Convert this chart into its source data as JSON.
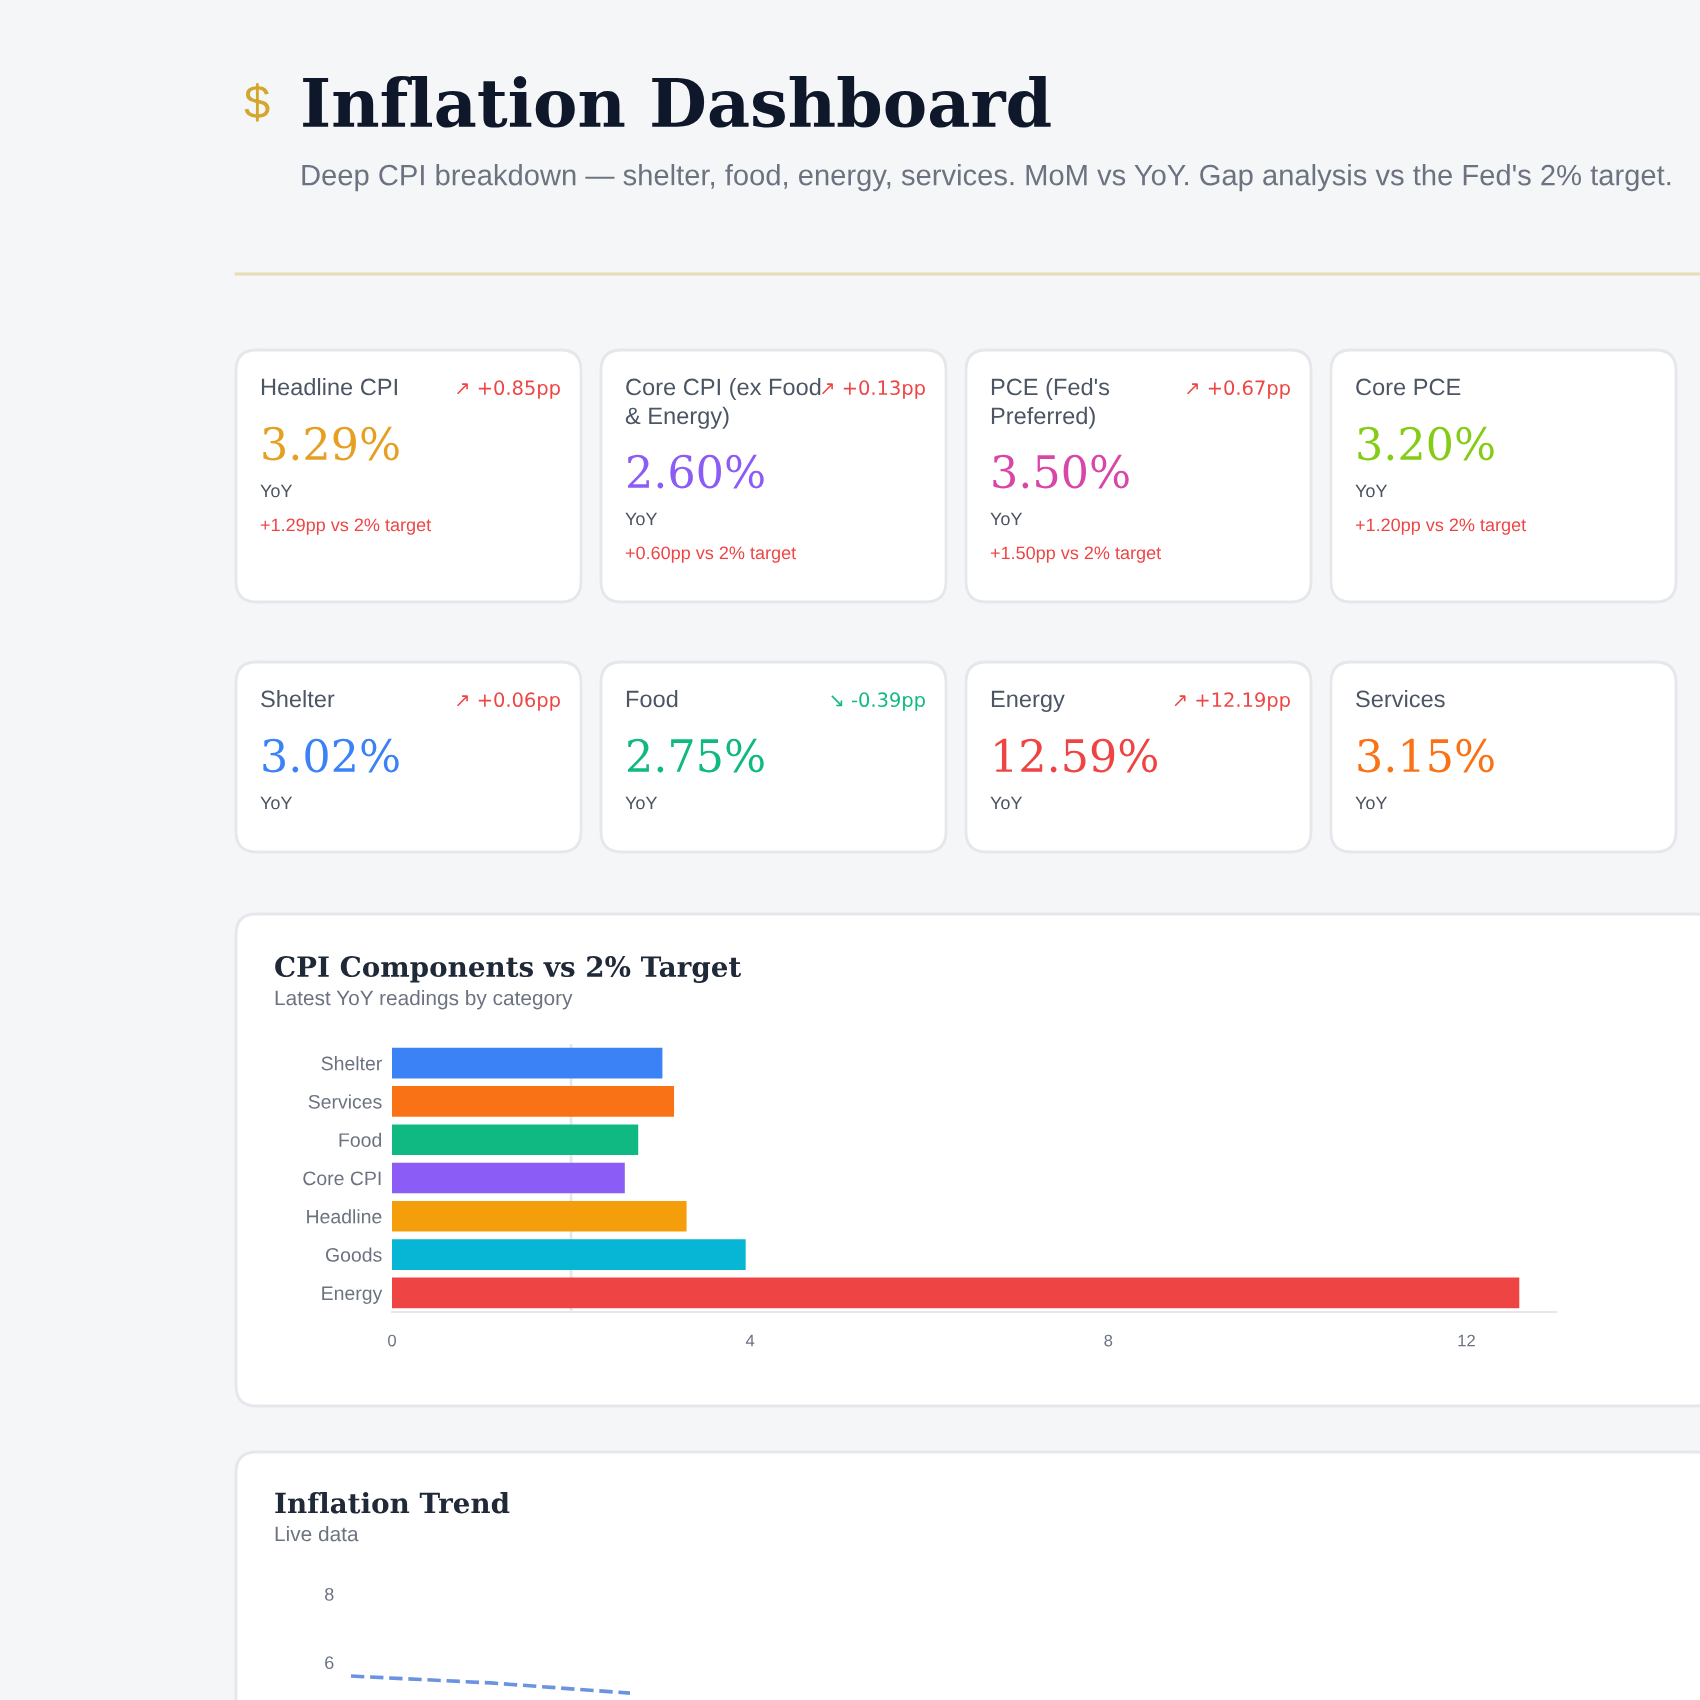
{
  "chart_data": [
    {
      "type": "other",
      "title": "Inflation Dashboard",
      "subtitle": "Deep CPI breakdown — shelter, food, energy, services. MoM vs YoY. Gap analysis vs the Fed's 2% target.",
      "annotations": [
        "$",
        "Headline CPI",
        "↗ +0.85pp",
        "3.29%",
        "YoY",
        "+1.29pp vs 2% target",
        "Core CPI (ex Food & Energy)",
        "↗ +0.13pp",
        "2.60%",
        "YoY",
        "+0.60pp vs 2% target",
        "PCE (Fed's Preferred)",
        "↗ +0.67pp",
        "3.50%",
        "YoY",
        "+1.50pp vs 2% target",
        "Core PCE",
        "3.20%",
        "YoY",
        "+1.20pp vs 2% target",
        "Shelter",
        "↗ +0.06pp",
        "3.02%",
        "YoY",
        "Food",
        "↘ -0.39pp",
        "2.75%",
        "YoY",
        "Energy",
        "↗ +12.19pp",
        "12.59%",
        "YoY",
        "Services",
        "3.15%",
        "YoY"
      ]
    },
    {
      "type": "bar",
      "orientation": "horizontal",
      "title": "CPI Components vs 2% Target",
      "subtitle": "Latest YoY readings by category",
      "categories": [
        "Shelter",
        "Services",
        "Food",
        "Core CPI",
        "Headline",
        "Goods",
        "Energy"
      ],
      "values": [
        3.02,
        3.15,
        2.75,
        2.6,
        3.29,
        3.95,
        12.59
      ],
      "colors": [
        "#3b82f6",
        "#f97316",
        "#10b981",
        "#8b5cf6",
        "#f59e0b",
        "#06b6d4",
        "#ef4444"
      ],
      "xlim": [
        0,
        13
      ],
      "xticks": [
        0,
        4,
        8,
        12
      ],
      "ref_lines": [
        {
          "axis": "x",
          "value": 2,
          "color": "#e5e7eb"
        }
      ]
    },
    {
      "type": "line",
      "title": "Inflation Trend",
      "subtitle": "Live data",
      "categories": [
        null,
        null,
        null,
        null,
        null
      ],
      "series": [
        {
          "color": "#6b93e0",
          "values": [
            5.6,
            5.5,
            5.4,
            5.25,
            5.1
          ]
        }
      ],
      "ylim": [
        4.9,
        8
      ],
      "yticks": [
        6,
        8
      ],
      "line_style": "dashed",
      "marker": "none",
      "tick_labels": "y"
    }
  ]
}
